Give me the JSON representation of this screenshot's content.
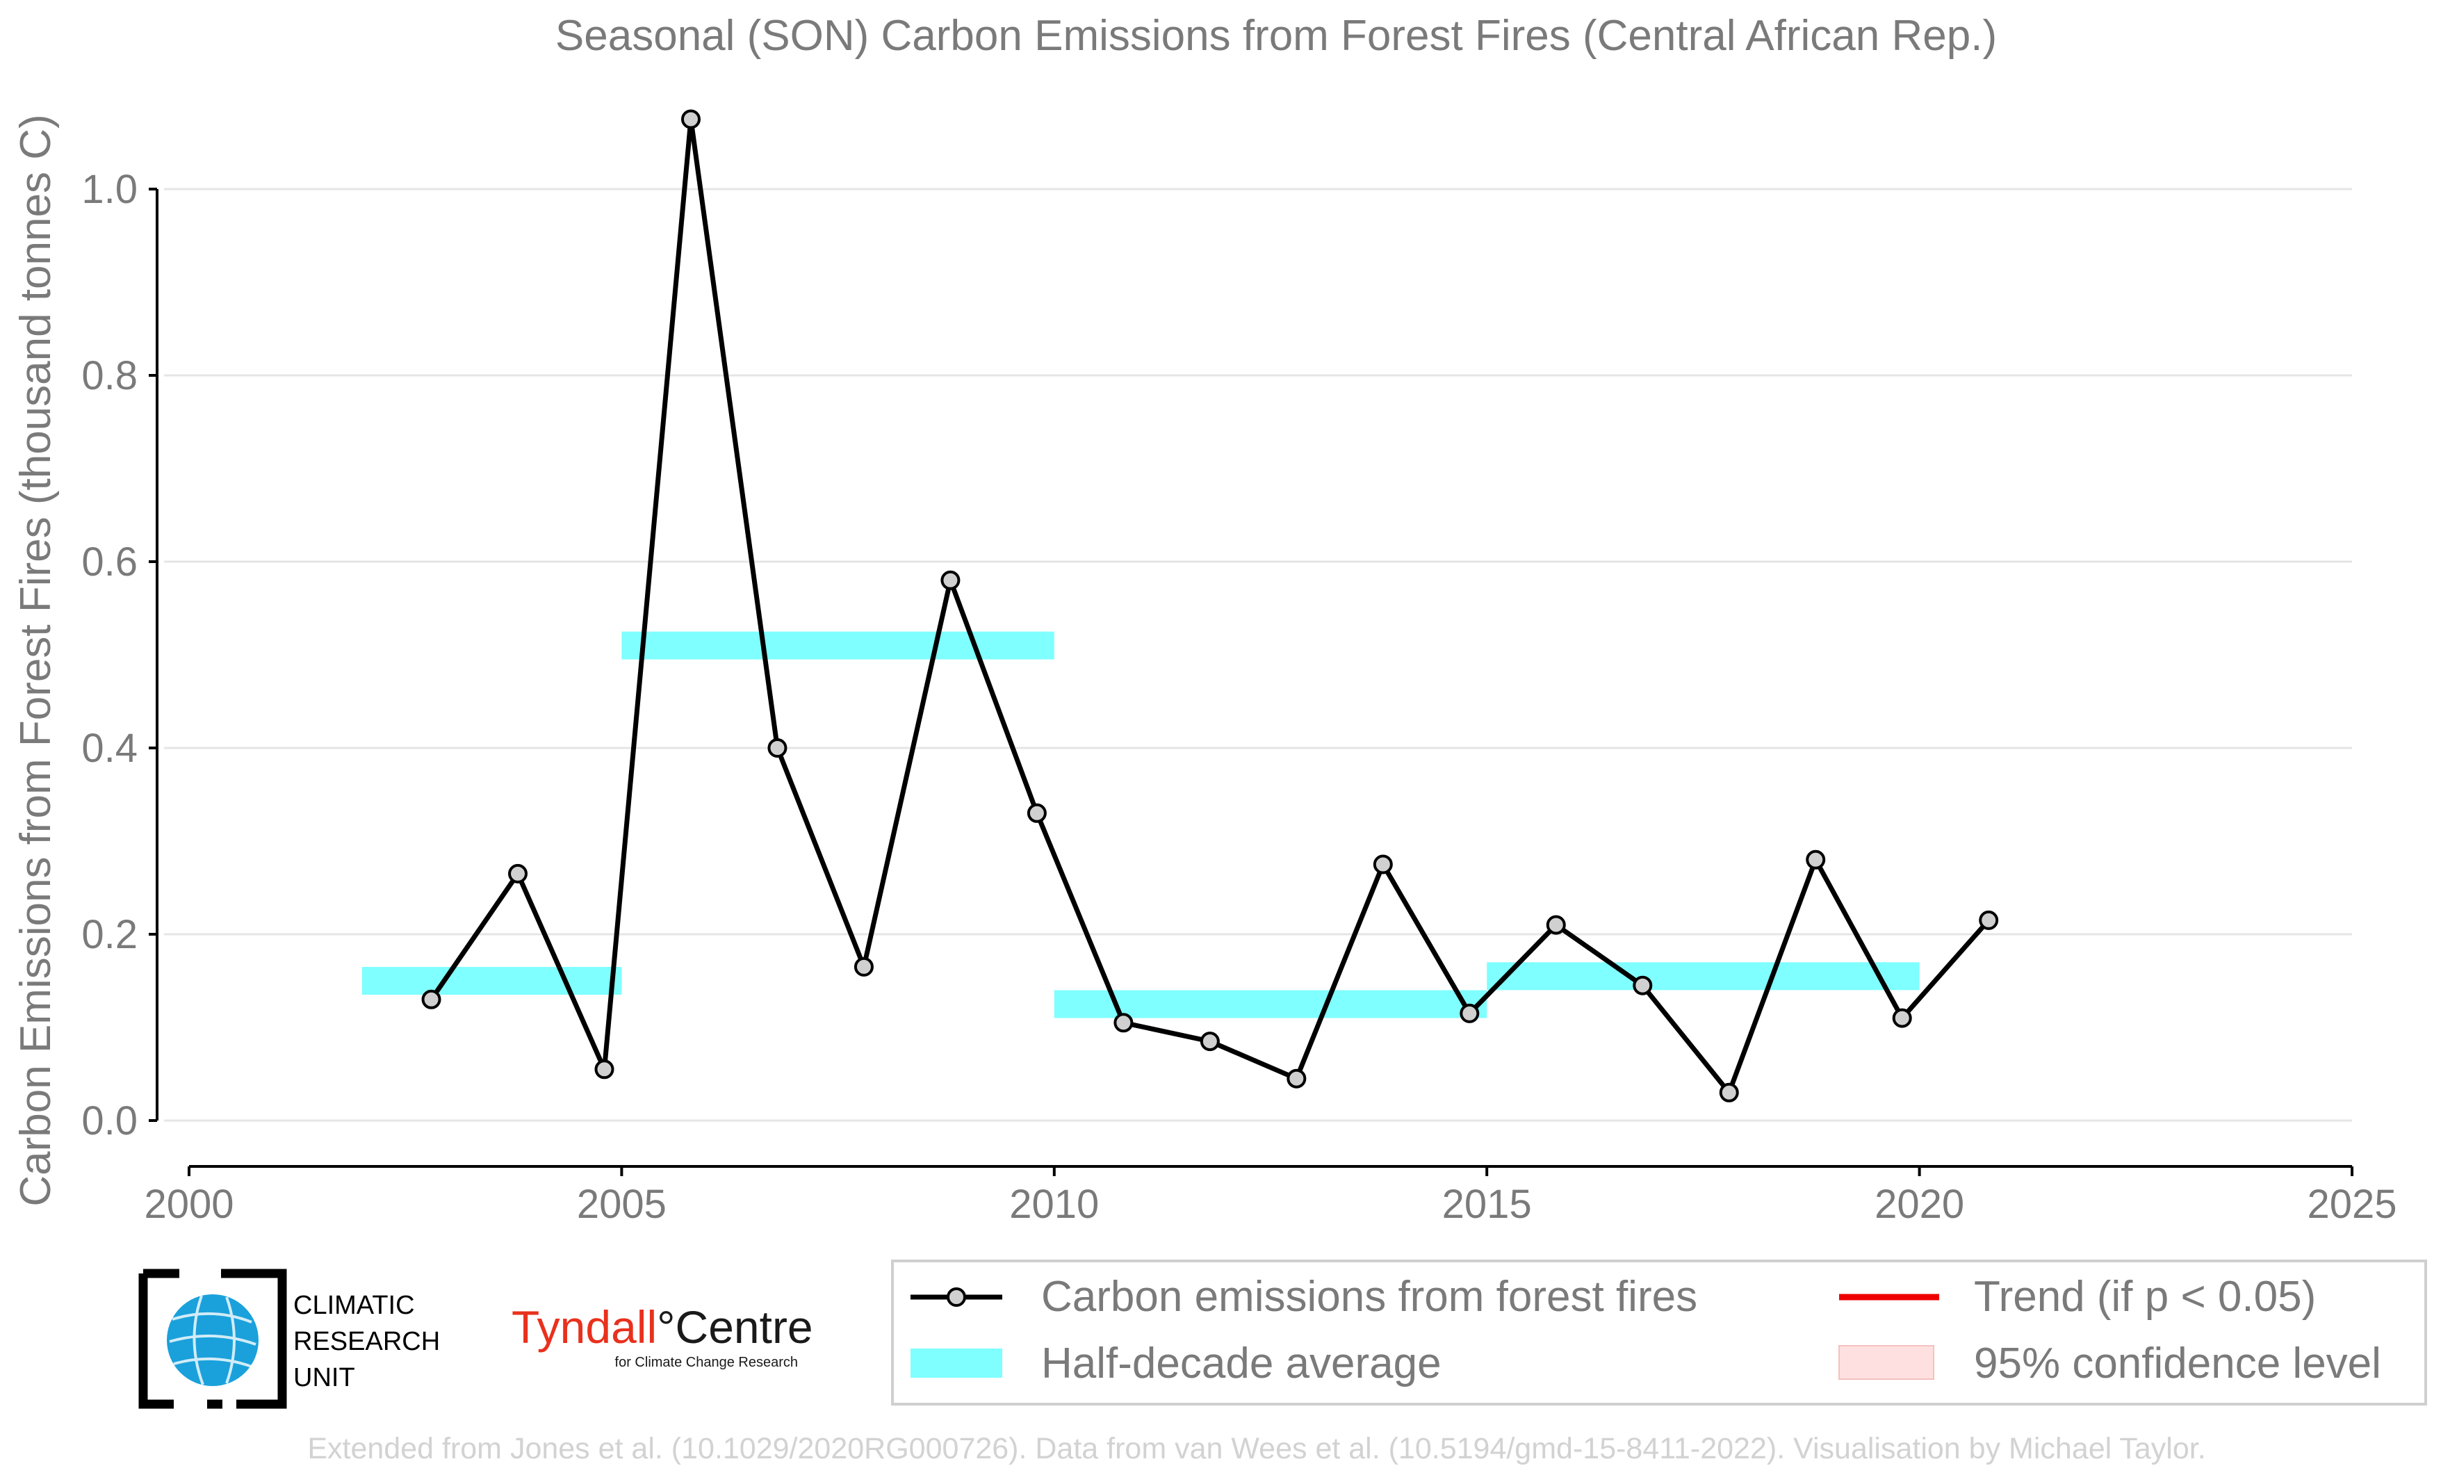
{
  "chart_data": {
    "type": "line",
    "title": "Seasonal (SON) Carbon Emissions from Forest Fires (Central African Rep.)",
    "xlabel": "",
    "ylabel": "Carbon Emissions from Forest Fires (thousand tonnes C)",
    "xlim": [
      2000,
      2025
    ],
    "ylim": [
      0.0,
      1.1
    ],
    "grid": true,
    "x_ticks": [
      "2000",
      "2005",
      "2010",
      "2015",
      "2020",
      "2025"
    ],
    "y_ticks": [
      "0.0",
      "0.2",
      "0.4",
      "0.6",
      "0.8",
      "1.0"
    ],
    "series": [
      {
        "name": "Carbon emissions from forest fires",
        "color": "#000000",
        "marker_color": "#d0d0d0",
        "x": [
          2002.8,
          2003.8,
          2004.8,
          2005.8,
          2006.8,
          2007.8,
          2008.8,
          2009.8,
          2010.8,
          2011.8,
          2012.8,
          2013.8,
          2014.8,
          2015.8,
          2016.8,
          2017.8,
          2018.8,
          2019.8,
          2020.8
        ],
        "values": [
          0.13,
          0.265,
          0.055,
          1.075,
          0.4,
          0.165,
          0.58,
          0.33,
          0.105,
          0.085,
          0.045,
          0.275,
          0.115,
          0.21,
          0.145,
          0.03,
          0.28,
          0.11,
          0.215
        ]
      }
    ],
    "half_decade_average": {
      "name": "Half-decade average",
      "color": "#7fffff",
      "segments": [
        {
          "x_start": 2002,
          "x_end": 2005,
          "value": 0.15
        },
        {
          "x_start": 2005,
          "x_end": 2010,
          "value": 0.51
        },
        {
          "x_start": 2010,
          "x_end": 2015,
          "value": 0.125
        },
        {
          "x_start": 2015,
          "x_end": 2020,
          "value": 0.155
        }
      ]
    },
    "legend": {
      "placement": "bottom",
      "entries": [
        {
          "label": "Carbon emissions from forest fires",
          "color": "#000000",
          "kind": "line-marker"
        },
        {
          "label": "Trend (if p < 0.05)",
          "color": "#ee0000",
          "kind": "line"
        },
        {
          "label": "Half-decade average",
          "color": "#7fffff",
          "kind": "patch"
        },
        {
          "label": "95% confidence level",
          "color": "#ffe0e0",
          "kind": "patch"
        }
      ]
    }
  },
  "logos": {
    "cru": [
      "CLIMATIC",
      "RESEARCH",
      "UNIT"
    ],
    "tyndall_main_a": "Tyndall",
    "tyndall_degree": "°",
    "tyndall_main_b": "Centre",
    "tyndall_sub": "for Climate Change Research"
  },
  "footer": "Extended from Jones et al. (10.1029/2020RG000726). Data from van Wees et al. (10.5194/gmd-15-8411-2022). Visualisation by Michael Taylor."
}
